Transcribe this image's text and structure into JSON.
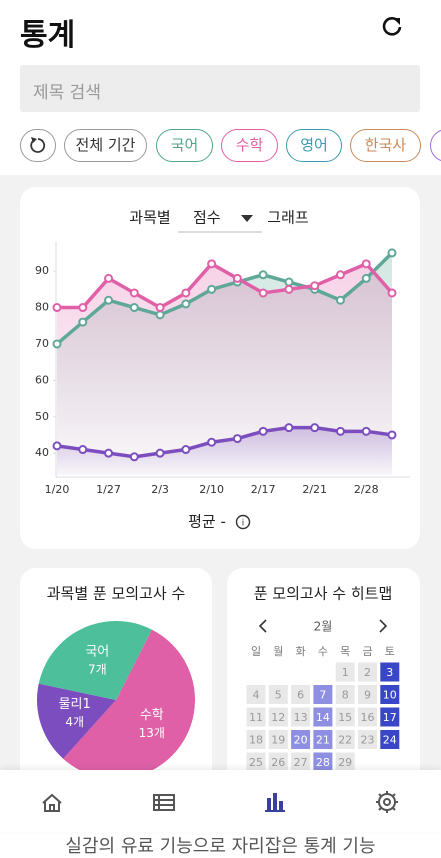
{
  "header": {
    "title": "통계"
  },
  "search": {
    "placeholder": "제목 검색"
  },
  "chips": [
    {
      "label": "전체 기간",
      "color": "#9a9a9a"
    },
    {
      "label": "국어",
      "color": "#4fa58a"
    },
    {
      "label": "수학",
      "color": "#e060a8"
    },
    {
      "label": "영어",
      "color": "#3b9bb0"
    },
    {
      "label": "한국사",
      "color": "#c88a5a"
    }
  ],
  "chart_data": [
    {
      "type": "line",
      "selector": {
        "group": "과목별",
        "metric": "점수",
        "suffix": "그래프"
      },
      "categories": [
        "1/20",
        null,
        "1/27",
        null,
        "2/3",
        null,
        "2/10",
        null,
        "2/17",
        null,
        "2/21",
        null,
        "2/28",
        null
      ],
      "series": [
        {
          "color": "#e060a8",
          "values": [
            80,
            80,
            88,
            84,
            80,
            84,
            92,
            88,
            84,
            85,
            86,
            89,
            92,
            84
          ]
        },
        {
          "color": "#5fa898",
          "values": [
            70,
            76,
            82,
            80,
            78,
            81,
            85,
            87,
            89,
            87,
            85,
            82,
            88,
            95
          ]
        },
        {
          "color": "#7c4dbe",
          "values": [
            42,
            41,
            40,
            39,
            40,
            41,
            43,
            44,
            46,
            47,
            47,
            46,
            46,
            45
          ]
        }
      ],
      "ylim": [
        34,
        98
      ],
      "yticks": [
        40,
        50,
        60,
        70,
        80,
        90
      ],
      "footer": "평균 -"
    },
    {
      "type": "pie",
      "title": "과목별 푼 모의고사 수",
      "categories": [
        "수학",
        "물리1",
        "국어"
      ],
      "values": [
        13,
        4,
        7
      ],
      "value_labels": [
        "13개",
        "4개",
        "7개"
      ],
      "colors": [
        "#e060a8",
        "#7c4dbe",
        "#4dbf9b"
      ]
    },
    {
      "type": "heatmap",
      "title": "푼 모의고사 수 히트맵",
      "month": "2월",
      "weekdays": [
        "일",
        "월",
        "화",
        "수",
        "목",
        "금",
        "토"
      ],
      "days": [
        1,
        2,
        3,
        4,
        5,
        6,
        7,
        8,
        9,
        10,
        11,
        12,
        13,
        14,
        15,
        16,
        17,
        18,
        19,
        20,
        21,
        22,
        23,
        24,
        25,
        26,
        27,
        28,
        29
      ],
      "counts": [
        0,
        0,
        2,
        0,
        0,
        0,
        1,
        0,
        0,
        2,
        0,
        0,
        0,
        1,
        0,
        0,
        2,
        0,
        0,
        1,
        1,
        0,
        0,
        2,
        0,
        0,
        0,
        1,
        0
      ],
      "colors": [
        "#e8e8e8",
        "#8e8fe2",
        "#3a46c8"
      ]
    }
  ],
  "caption": "실감의 유료 기능으로 자리잡은 통계 기능"
}
